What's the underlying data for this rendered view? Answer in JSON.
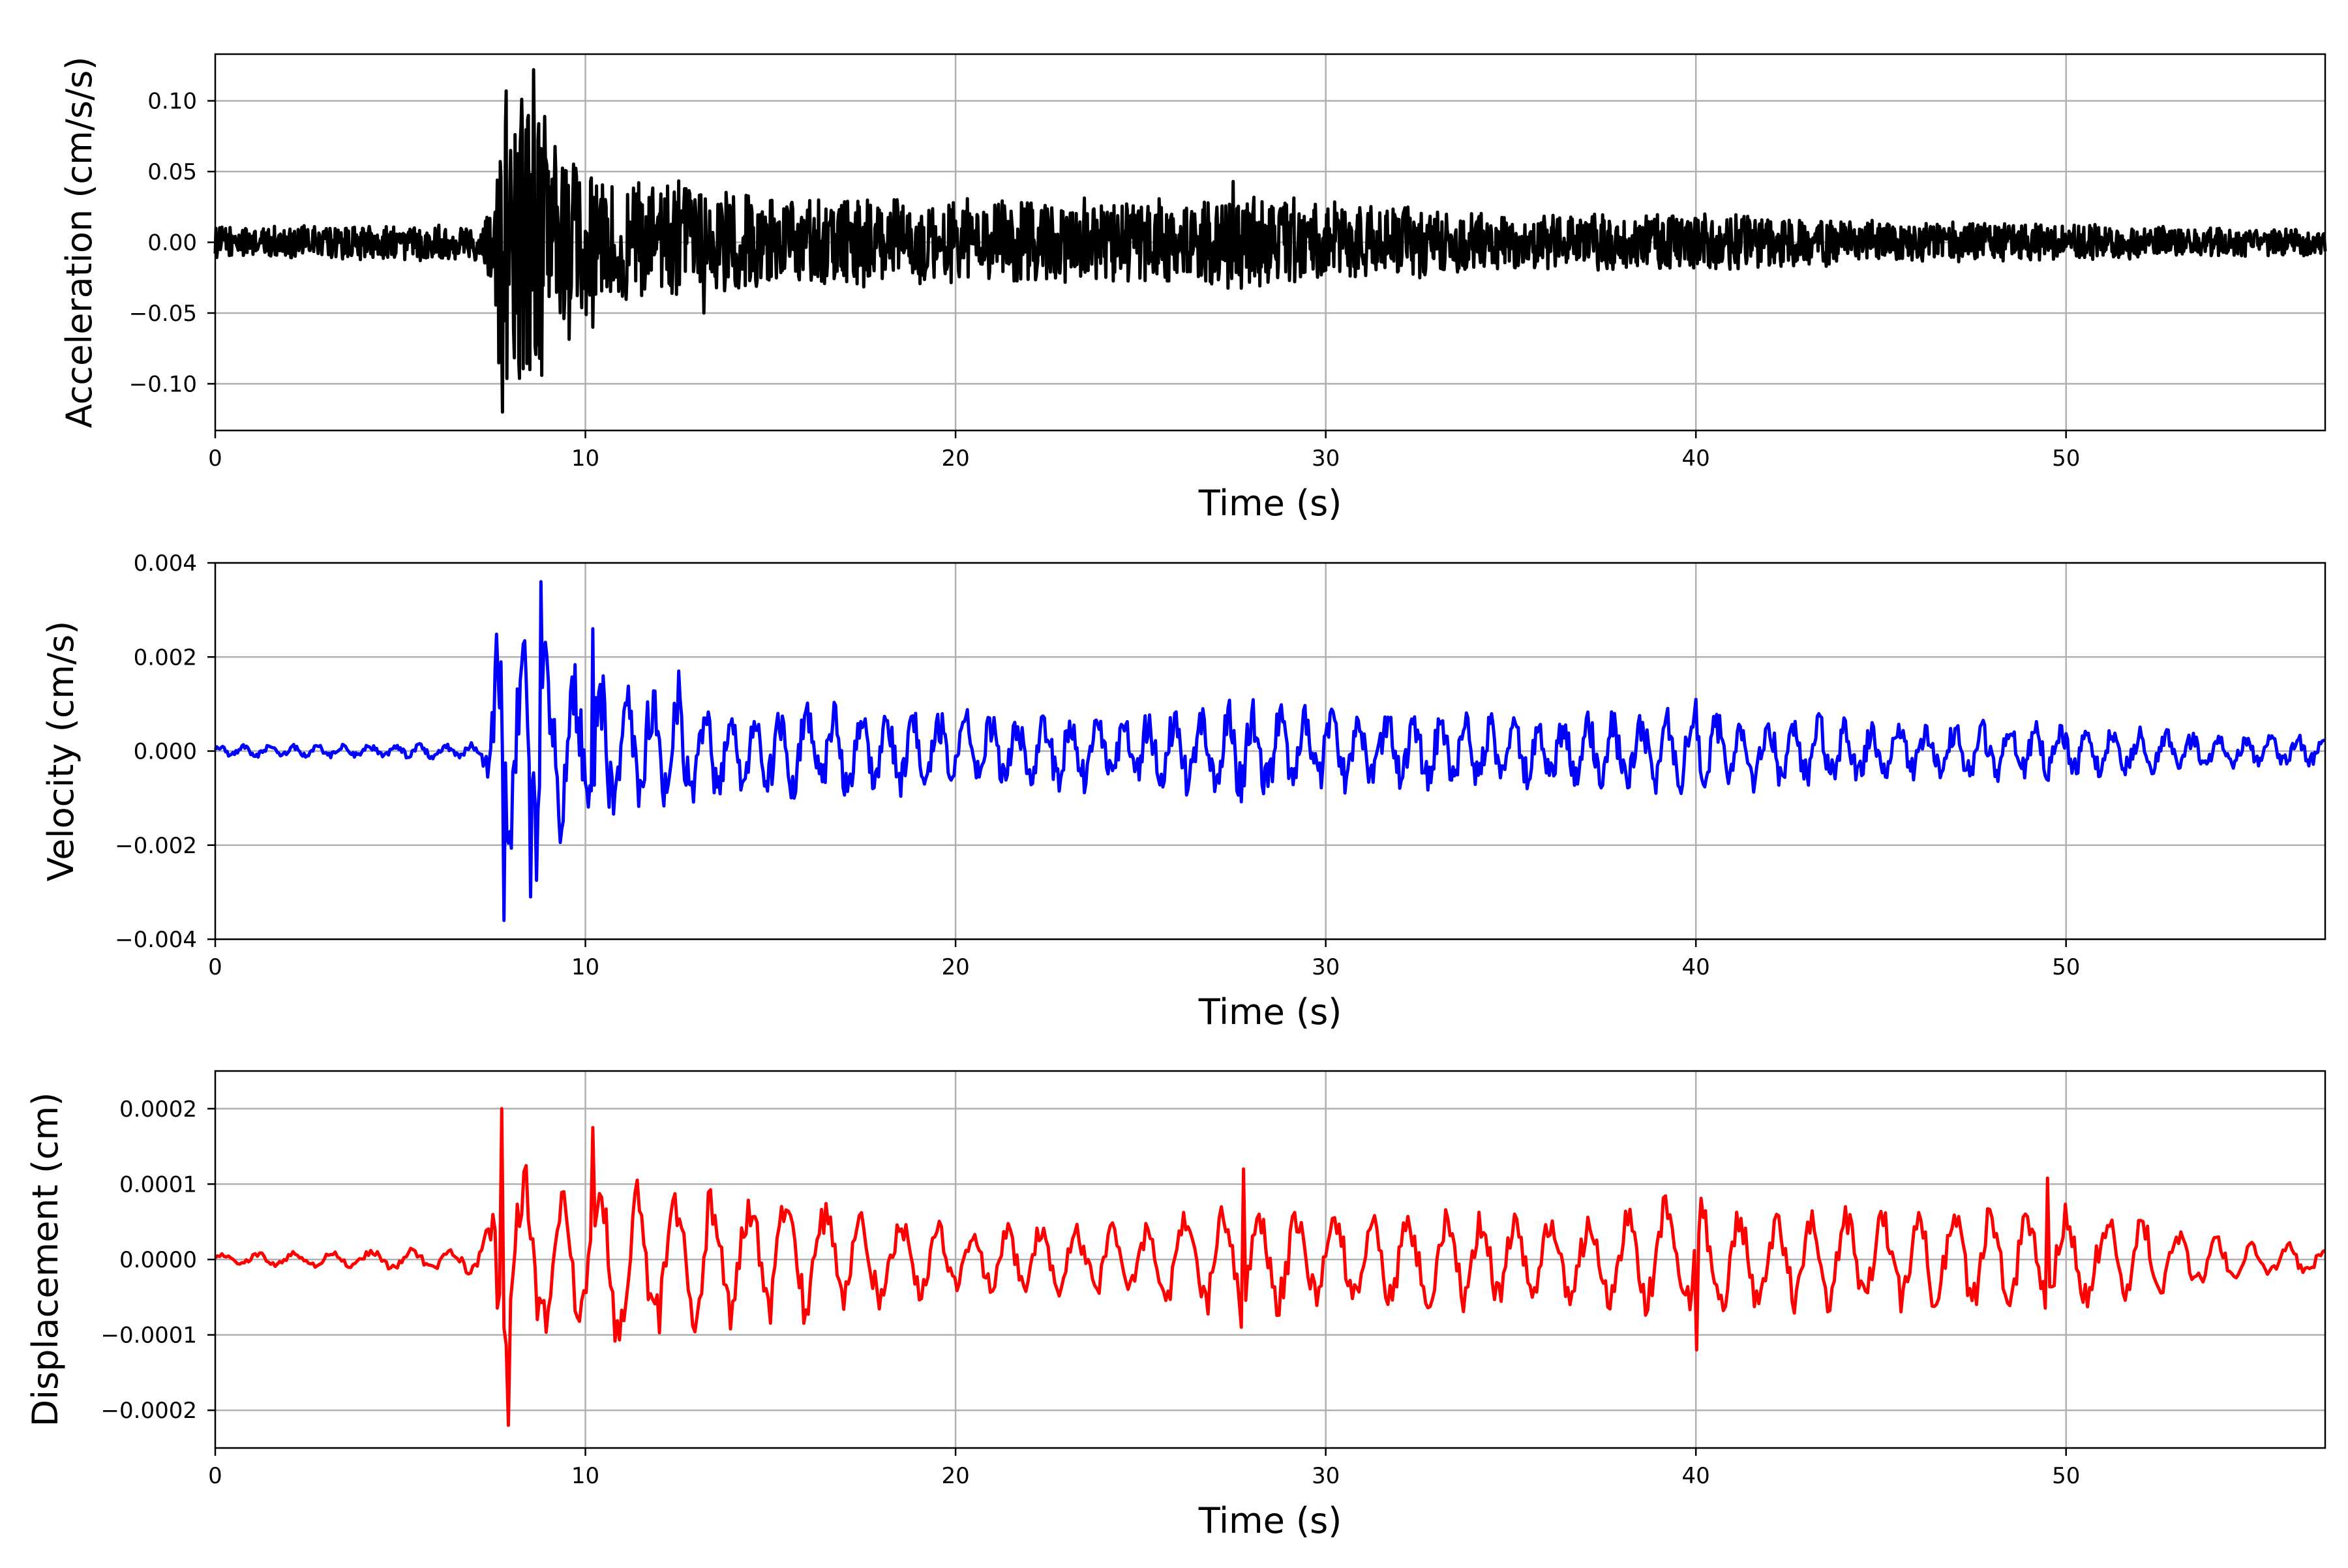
{
  "chart_data": [
    {
      "type": "line",
      "xlabel": "Time (s)",
      "ylabel": "Acceleration (cm/s/s)",
      "xlim": [
        0,
        57
      ],
      "ylim": [
        -0.133,
        0.133
      ],
      "xticks": [
        0,
        10,
        20,
        30,
        40,
        50
      ],
      "xtick_labels": [
        "0",
        "10",
        "20",
        "30",
        "40",
        "50"
      ],
      "yticks": [
        -0.1,
        -0.05,
        0.0,
        0.05,
        0.1
      ],
      "ytick_labels": [
        "−0.10",
        "−0.05",
        "0.00",
        "0.05",
        "0.10"
      ],
      "grid": true,
      "series": [
        {
          "color": "#000000",
          "envelope": {
            "x": [
              0,
              7.2,
              7.5,
              7.7,
              8.0,
              8.6,
              9.0,
              10.0,
              11.0,
              12.0,
              12.5,
              13.0,
              15.0,
              18.0,
              20.0,
              22.0,
              25.0,
              27.5,
              30.0,
              32.0,
              35.0,
              40.0,
              45.0,
              50.0,
              55.0,
              57.0
            ],
            "y": [
              0.012,
              0.014,
              0.04,
              0.11,
              0.115,
              0.12,
              0.095,
              0.06,
              0.05,
              0.042,
              0.047,
              0.04,
              0.035,
              0.033,
              0.032,
              0.033,
              0.032,
              0.04,
              0.03,
              0.027,
              0.022,
              0.022,
              0.016,
              0.014,
              0.011,
              0.011
            ]
          },
          "peaks": [
            {
              "x": 7.75,
              "y": -0.12
            },
            {
              "x": 7.85,
              "y": 0.107
            },
            {
              "x": 8.6,
              "y": 0.122
            },
            {
              "x": 8.5,
              "y": -0.09
            },
            {
              "x": 8.75,
              "y": -0.082
            },
            {
              "x": 10.2,
              "y": -0.06
            },
            {
              "x": 13.2,
              "y": -0.05
            },
            {
              "x": 27.5,
              "y": 0.043
            }
          ],
          "sample_dt": 0.02
        }
      ]
    },
    {
      "type": "line",
      "xlabel": "Time (s)",
      "ylabel": "Velocity (cm/s)",
      "xlim": [
        0,
        57
      ],
      "ylim": [
        -0.004,
        0.004
      ],
      "xticks": [
        0,
        10,
        20,
        30,
        40,
        50
      ],
      "xtick_labels": [
        "0",
        "10",
        "20",
        "30",
        "40",
        "50"
      ],
      "yticks": [
        -0.004,
        -0.002,
        0.0,
        0.002,
        0.004
      ],
      "ytick_labels": [
        "−0.004",
        "−0.002",
        "0.000",
        "0.002",
        "0.004"
      ],
      "grid": true,
      "series": [
        {
          "color": "#0000ff",
          "envelope": {
            "x": [
              0,
              7.2,
              7.4,
              7.7,
              8.0,
              8.8,
              9.5,
              10.2,
              11.0,
              12.5,
              14.0,
              17.0,
              20.0,
              25.0,
              27.8,
              30.0,
              35.0,
              40.0,
              45.0,
              50.0,
              55.0,
              57.0
            ],
            "y": [
              0.00015,
              0.0002,
              0.0012,
              0.0035,
              0.0025,
              0.0035,
              0.002,
              0.0025,
              0.0018,
              0.0016,
              0.0011,
              0.0012,
              0.001,
              0.001,
              0.0013,
              0.001,
              0.0009,
              0.0011,
              0.0008,
              0.0007,
              0.0004,
              0.0004
            ]
          },
          "peaks": [
            {
              "x": 7.8,
              "y": -0.0036
            },
            {
              "x": 8.8,
              "y": 0.0036
            },
            {
              "x": 8.5,
              "y": -0.0031
            },
            {
              "x": 10.2,
              "y": 0.0026
            },
            {
              "x": 12.5,
              "y": 0.0017
            },
            {
              "x": 40.0,
              "y": -0.0012
            },
            {
              "x": 40.0,
              "y": 0.0011
            }
          ],
          "sample_dt": 0.04
        }
      ]
    },
    {
      "type": "line",
      "xlabel": "Time (s)",
      "ylabel": "Displacement (cm)",
      "xlim": [
        0,
        57
      ],
      "ylim": [
        -0.00025,
        0.00025
      ],
      "xticks": [
        0,
        10,
        20,
        30,
        40,
        50
      ],
      "xtick_labels": [
        "0",
        "10",
        "20",
        "30",
        "40",
        "50"
      ],
      "yticks": [
        -0.0002,
        -0.0001,
        0.0,
        0.0001,
        0.0002
      ],
      "ytick_labels": [
        "−0.0002",
        "−0.0001",
        "0.0000",
        "0.0001",
        "0.0002"
      ],
      "grid": true,
      "series": [
        {
          "color": "#ff0000",
          "envelope": {
            "x": [
              0,
              5.0,
              7.2,
              7.7,
              8.0,
              9.0,
              10.2,
              12.5,
              14.5,
              17.0,
              20.0,
              25.0,
              27.8,
              30.0,
              33.0,
              37.0,
              40.0,
              45.0,
              49.5,
              50.5,
              55.0,
              57.0
            ],
            "y": [
              1e-05,
              2e-05,
              3e-05,
              0.0002,
              0.0002,
              0.00016,
              0.00017,
              0.00013,
              0.00014,
              0.0001,
              6e-05,
              7e-05,
              0.00012,
              8e-05,
              9e-05,
              9e-05,
              0.00012,
              9e-05,
              0.0001,
              0.0001,
              3e-05,
              3e-05
            ]
          },
          "peaks": [
            {
              "x": 7.75,
              "y": 0.0002
            },
            {
              "x": 7.9,
              "y": -0.00022
            },
            {
              "x": 10.2,
              "y": 0.000175
            },
            {
              "x": 27.8,
              "y": 0.00012
            },
            {
              "x": 40.0,
              "y": -0.00012
            },
            {
              "x": 49.5,
              "y": 0.000108
            }
          ],
          "sample_dt": 0.06
        }
      ]
    }
  ]
}
